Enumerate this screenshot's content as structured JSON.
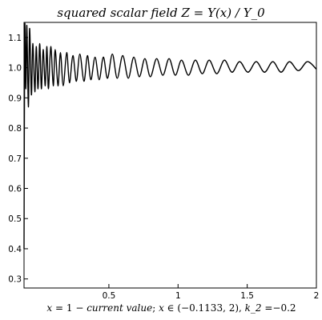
{
  "chart_data": {
    "type": "line",
    "title_parts": [
      "squared scalar field ",
      "Z",
      " = ",
      "Y",
      "(",
      "x",
      ") / ",
      "Y_0"
    ],
    "xlabel_parts": [
      "x",
      " = 1 − ",
      "current value",
      "; ",
      "x",
      " ∈ (−0.1133, 2), ",
      "k_2",
      " =−0.2"
    ],
    "xlim": [
      -0.1133,
      2
    ],
    "ylim": [
      0.27,
      1.15
    ],
    "xticks": [
      {
        "v": 0.5,
        "label": "0.5"
      },
      {
        "v": 1,
        "label": "1"
      },
      {
        "v": 1.5,
        "label": "1.5"
      },
      {
        "v": 2,
        "label": "2"
      }
    ],
    "yticks": [
      {
        "v": 0.3,
        "label": "0.3"
      },
      {
        "v": 0.4,
        "label": "0.4"
      },
      {
        "v": 0.5,
        "label": "0.5"
      },
      {
        "v": 0.6,
        "label": "0.6"
      },
      {
        "v": 0.7,
        "label": "0.7"
      },
      {
        "v": 0.8,
        "label": "0.8"
      },
      {
        "v": 0.9,
        "label": "0.9"
      },
      {
        "v": 1.0,
        "label": "1.0"
      },
      {
        "v": 1.1,
        "label": "1.1"
      }
    ],
    "grid": false,
    "series": [
      {
        "x": [
          -0.1133,
          -0.108,
          -0.1,
          -0.093,
          -0.082,
          -0.073,
          -0.06,
          -0.05,
          -0.035,
          -0.025,
          -0.012,
          0.0,
          0.012,
          0.025,
          0.04,
          0.052,
          0.063,
          0.08,
          0.098,
          0.112,
          0.132,
          0.15,
          0.17,
          0.195,
          0.215,
          0.24,
          0.265,
          0.29,
          0.32,
          0.345,
          0.37,
          0.4,
          0.43,
          0.46,
          0.49,
          0.525,
          0.56,
          0.6,
          0.64,
          0.68,
          0.72,
          0.76,
          0.8,
          0.845,
          0.89,
          0.935,
          0.98,
          1.025,
          1.075,
          1.125,
          1.175,
          1.225,
          1.28,
          1.335,
          1.39,
          1.445,
          1.505,
          1.565,
          1.625,
          1.685,
          1.745,
          1.805,
          1.87,
          1.935,
          2.0
        ],
        "y": [
          0.4,
          1.13,
          0.93,
          1.14,
          0.87,
          1.13,
          0.91,
          1.08,
          0.92,
          1.07,
          0.93,
          1.08,
          0.93,
          1.06,
          0.94,
          1.07,
          0.93,
          1.07,
          0.94,
          1.06,
          0.94,
          1.05,
          0.94,
          1.05,
          0.95,
          1.04,
          0.955,
          1.045,
          0.955,
          1.04,
          0.96,
          1.035,
          0.96,
          1.035,
          0.965,
          1.045,
          0.965,
          1.04,
          0.965,
          1.035,
          0.97,
          1.03,
          0.97,
          1.03,
          0.975,
          1.03,
          0.975,
          1.025,
          0.975,
          1.025,
          0.98,
          1.025,
          0.98,
          1.025,
          0.985,
          1.02,
          0.985,
          1.02,
          0.985,
          1.02,
          0.985,
          1.02,
          0.99,
          1.02,
          0.995
        ]
      }
    ]
  }
}
